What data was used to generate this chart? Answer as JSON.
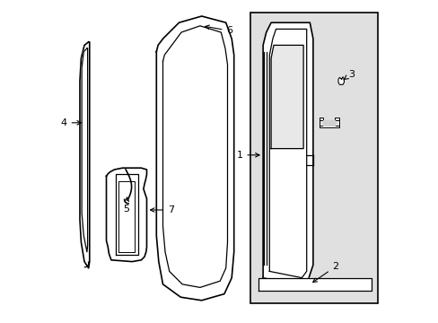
{
  "bg_color": "#ffffff",
  "line_color": "#000000",
  "box_bg_color": "#e0e0e0",
  "lw_thin": 0.9,
  "lw_med": 1.2
}
